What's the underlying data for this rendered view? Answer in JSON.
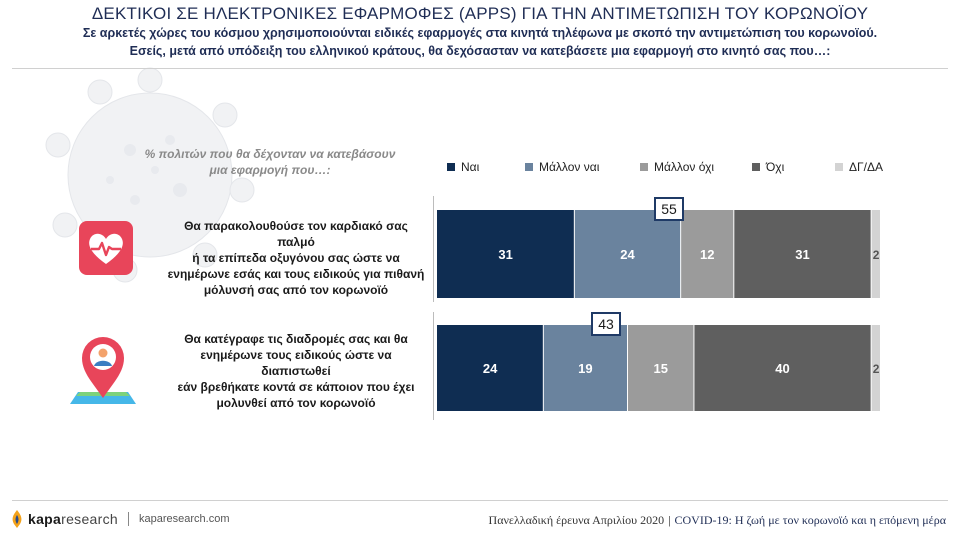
{
  "header": {
    "title": "ΔΕΚΤΙΚΟΙ ΣΕ ΗΛΕΚΤΡΟΝΙΚΕΣ ΕΦΑΡΜΟΦΕΣ (APPS) ΓΙΑ ΤΗΝ ΑΝΤΙΜΕΤΩΠΙΣΗ ΤΟΥ ΚΟΡΩΝΟΪΟΥ",
    "subtitle_line1": "Σε αρκετές χώρες του κόσμου χρησιμοποιούνται ειδικές εφαρμογές στα κινητά τηλέφωνα με σκοπό την αντιμετώπιση του κορωνοϊού.",
    "subtitle_line2": "Εσείς, μετά από υπόδειξη του ελληνικού κράτους, θα δεχόσασταν να κατεβάσετε μια εφαρμογή στο κινητό σας που…:"
  },
  "question": {
    "line1": "% πολιτών που θα δέχονταν να κατεβάσουν",
    "line2": "μια εφαρμογή που…:"
  },
  "chart_data": {
    "type": "bar",
    "orientation": "horizontal",
    "stacked": true,
    "categories": [
      "Θα παρακολουθούσε τον καρδιακό σας παλμό ή τα επίπεδα οξυγόνου σας ώστε να ενημέρωνε εσάς και τους ειδικούς για πιθανή μόλυνσή σας από τον κορωνοϊό",
      "Θα κατέγραφε τις διαδρομές σας και θα ενημέρωνε τους ειδικούς ώστε να διαπιστωθεί εάν βρεθήκατε κοντά σε κάποιον που έχει μολυνθεί από τον κορωνοϊό"
    ],
    "category_lines": [
      [
        "Θα παρακολουθούσε τον καρδιακό σας παλμό",
        "ή τα επίπεδα οξυγόνου σας ώστε να",
        "ενημέρωνε εσάς και τους ειδικούς για πιθανή",
        "μόλυνσή σας από τον κορωνοϊό"
      ],
      [
        "Θα κατέγραφε τις διαδρομές σας και θα",
        "ενημέρωνε τους ειδικούς ώστε να διαπιστωθεί",
        "εάν βρεθήκατε κοντά σε κάποιον που έχει",
        "μολυνθεί από τον κορωνοϊό"
      ]
    ],
    "series": [
      {
        "name": "Ναι",
        "color": "#0f2d52",
        "values": [
          31,
          24
        ]
      },
      {
        "name": "Μάλλον ναι",
        "color": "#6a839e",
        "values": [
          24,
          19
        ]
      },
      {
        "name": "Μάλλον όχι",
        "color": "#9b9b9b",
        "values": [
          12,
          15
        ]
      },
      {
        "name": "Όχι",
        "color": "#5f5f5f",
        "values": [
          31,
          40
        ]
      },
      {
        "name": "ΔΓ/ΔΑ",
        "color": "#d3d3d3",
        "values": [
          2,
          2
        ]
      }
    ],
    "totals_positive": [
      55,
      43
    ],
    "xlim": [
      0,
      100
    ]
  },
  "icons": {
    "row1": "heart-pulse-icon",
    "row2": "location-pin-person-icon"
  },
  "footer": {
    "brand_bold": "kapa",
    "brand_rest": "research",
    "url": "kaparesearch.com",
    "survey": "Πανελλαδική έρευνα Απριλίου 2020",
    "separator": "|",
    "topic": "COVID-19: Η ζωή με τον κορωνοϊό και η επόμενη μέρα"
  },
  "colors": {
    "title": "#1f2d55",
    "icon_heart": "#e8455a",
    "icon_pin": "#e8455a",
    "total_box_border": "#1f3a66"
  }
}
